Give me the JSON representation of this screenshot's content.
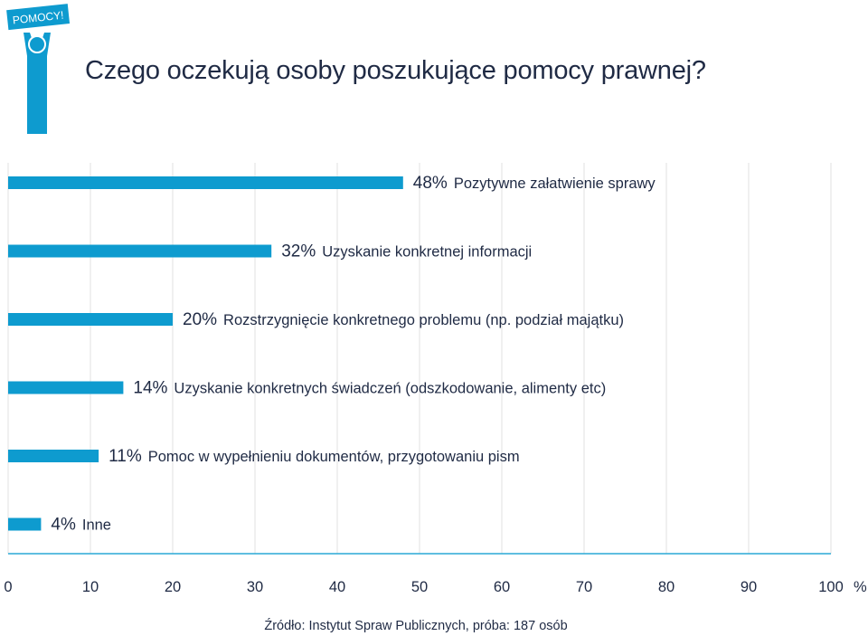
{
  "logo": {
    "badge_text": "POMOCY!"
  },
  "title": "Czego oczekują osoby poszukujące pomocy prawnej?",
  "source": "Źródło: Instytut Spraw Publicznych, próba: 187 osób",
  "colors": {
    "bar": "#0e9bcf",
    "axis": "#2aa9d6",
    "grid": "#e2e2e2",
    "text": "#1f2a44",
    "logo": "#0e9bcf"
  },
  "chart_data": {
    "type": "bar",
    "orientation": "horizontal",
    "categories": [
      "Pozytywne załatwienie sprawy",
      "Uzyskanie konkretnej informacji",
      "Rozstrzygnięcie konkretnego problemu (np. podział majątku)",
      "Uzyskanie konkretnych świadczeń (odszkodowanie, alimenty etc)",
      "Pomoc w wypełnieniu dokumentów, przygotowaniu pism",
      "Inne"
    ],
    "values": [
      48,
      32,
      20,
      14,
      11,
      4
    ],
    "value_labels": [
      "48%",
      "32%",
      "20%",
      "14%",
      "11%",
      "4%"
    ],
    "xlim": [
      0,
      100
    ],
    "x_ticks": [
      "0",
      "10",
      "20",
      "30",
      "40",
      "50",
      "60",
      "70",
      "80",
      "90",
      "100"
    ],
    "x_unit": "%",
    "grid": true,
    "legend": "none"
  }
}
